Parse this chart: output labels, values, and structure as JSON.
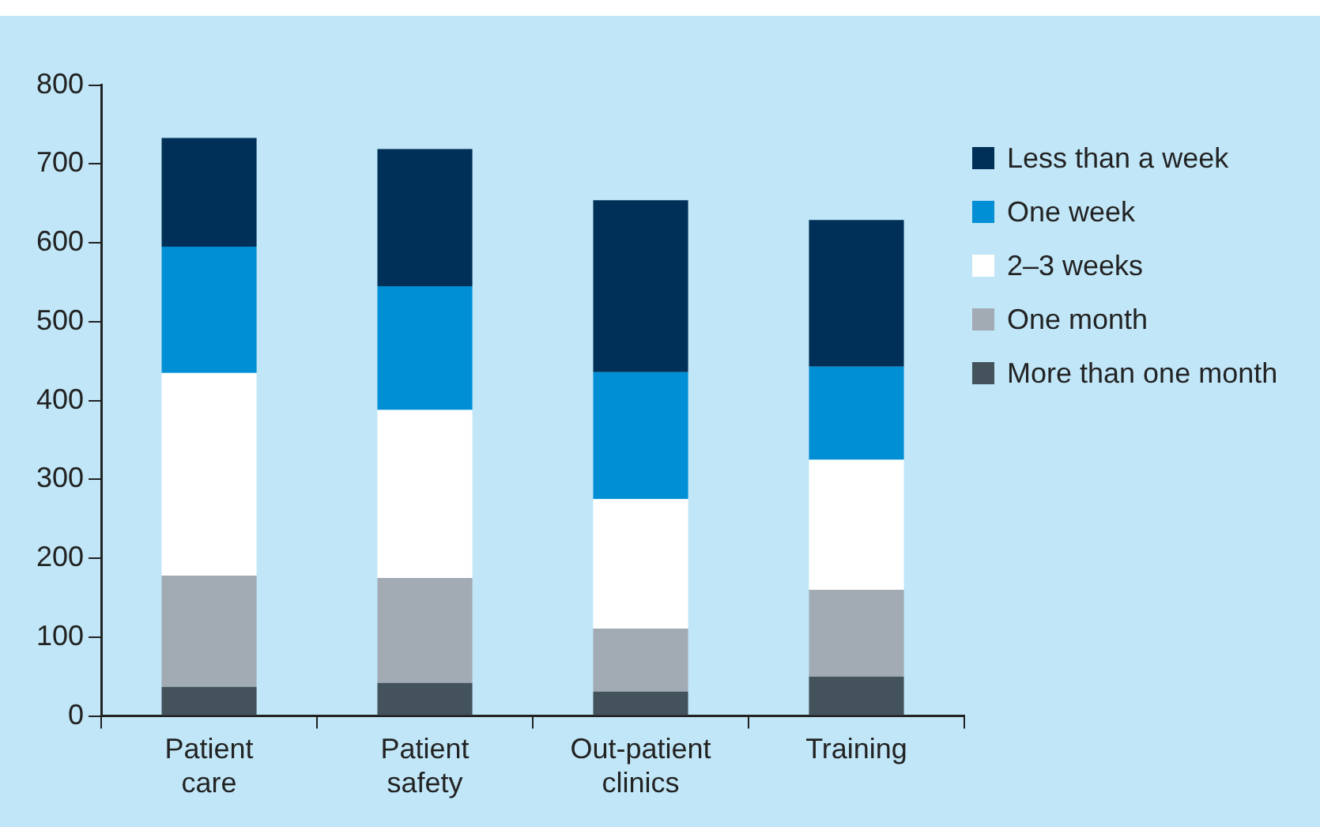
{
  "chart_data": {
    "type": "bar",
    "stacked": true,
    "categories": [
      "Patient care",
      "Patient safety",
      "Out-patient clinics",
      "Training"
    ],
    "series": [
      {
        "name": "More than one month",
        "color": "#44525c",
        "values": [
          37,
          42,
          31,
          50
        ]
      },
      {
        "name": "One month",
        "color": "#a2abb3",
        "values": [
          141,
          133,
          80,
          110
        ]
      },
      {
        "name": "2–3 weeks",
        "color": "#ffffff",
        "values": [
          257,
          213,
          164,
          165
        ]
      },
      {
        "name": "One week",
        "color": "#008fd5",
        "values": [
          160,
          157,
          161,
          118
        ]
      },
      {
        "name": "Less than a week",
        "color": "#003057",
        "values": [
          138,
          174,
          218,
          186
        ]
      }
    ],
    "ylim": [
      0,
      800
    ],
    "yticks": [
      0,
      100,
      200,
      300,
      400,
      500,
      600,
      700,
      800
    ],
    "grid": false,
    "legend": "right"
  }
}
